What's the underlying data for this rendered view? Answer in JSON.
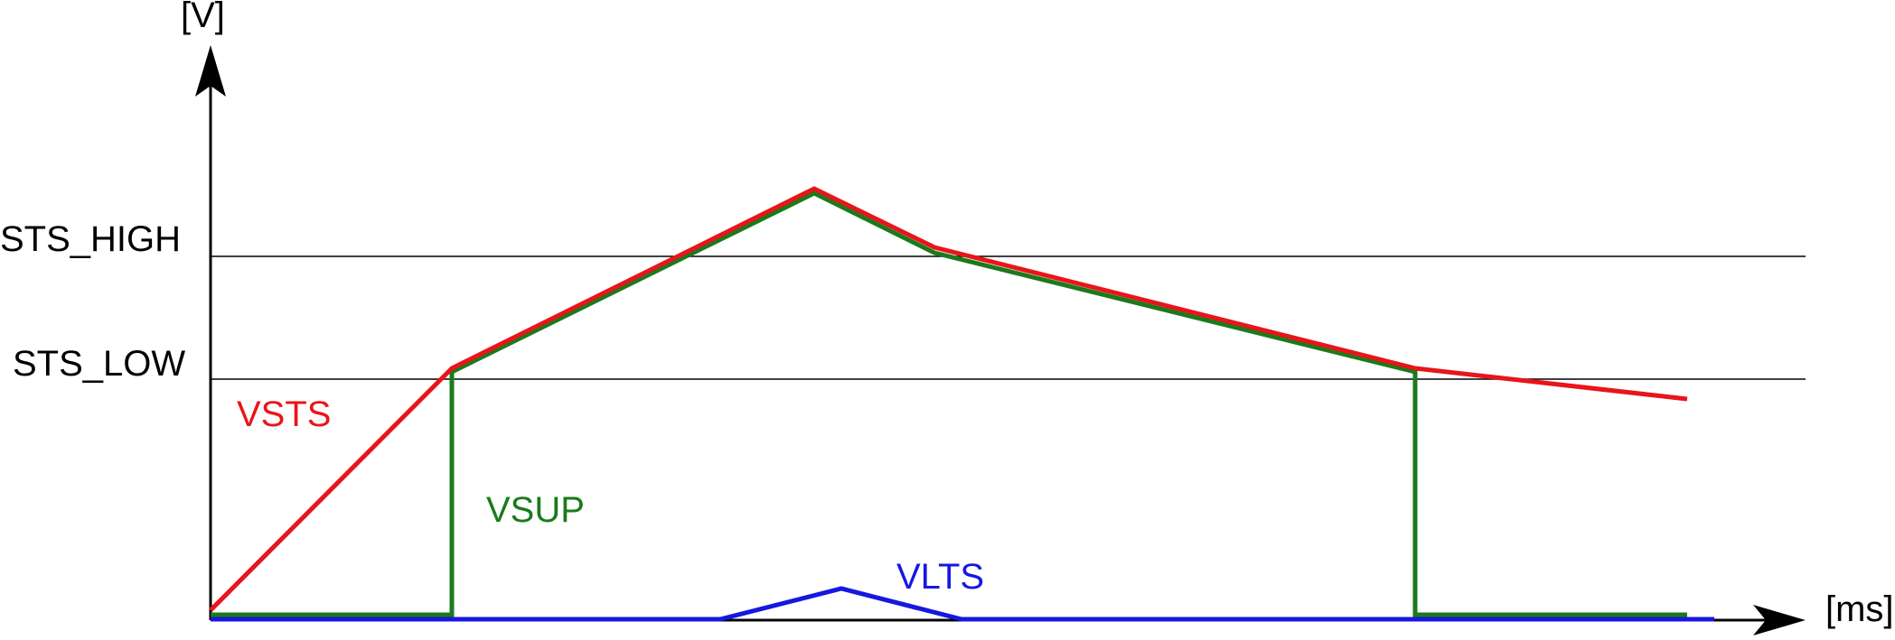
{
  "axes": {
    "y_unit": "[V]",
    "x_unit": "[ms]"
  },
  "thresholds": [
    {
      "label": "STS_HIGH"
    },
    {
      "label": "STS_LOW"
    }
  ],
  "signals": [
    {
      "name": "VSTS",
      "color": "#e8151a"
    },
    {
      "name": "VSUP",
      "color": "#1b7a1b"
    },
    {
      "name": "VLTS",
      "color": "#1717e0"
    }
  ],
  "colors": {
    "axis": "#000000",
    "background": "#ffffff"
  }
}
